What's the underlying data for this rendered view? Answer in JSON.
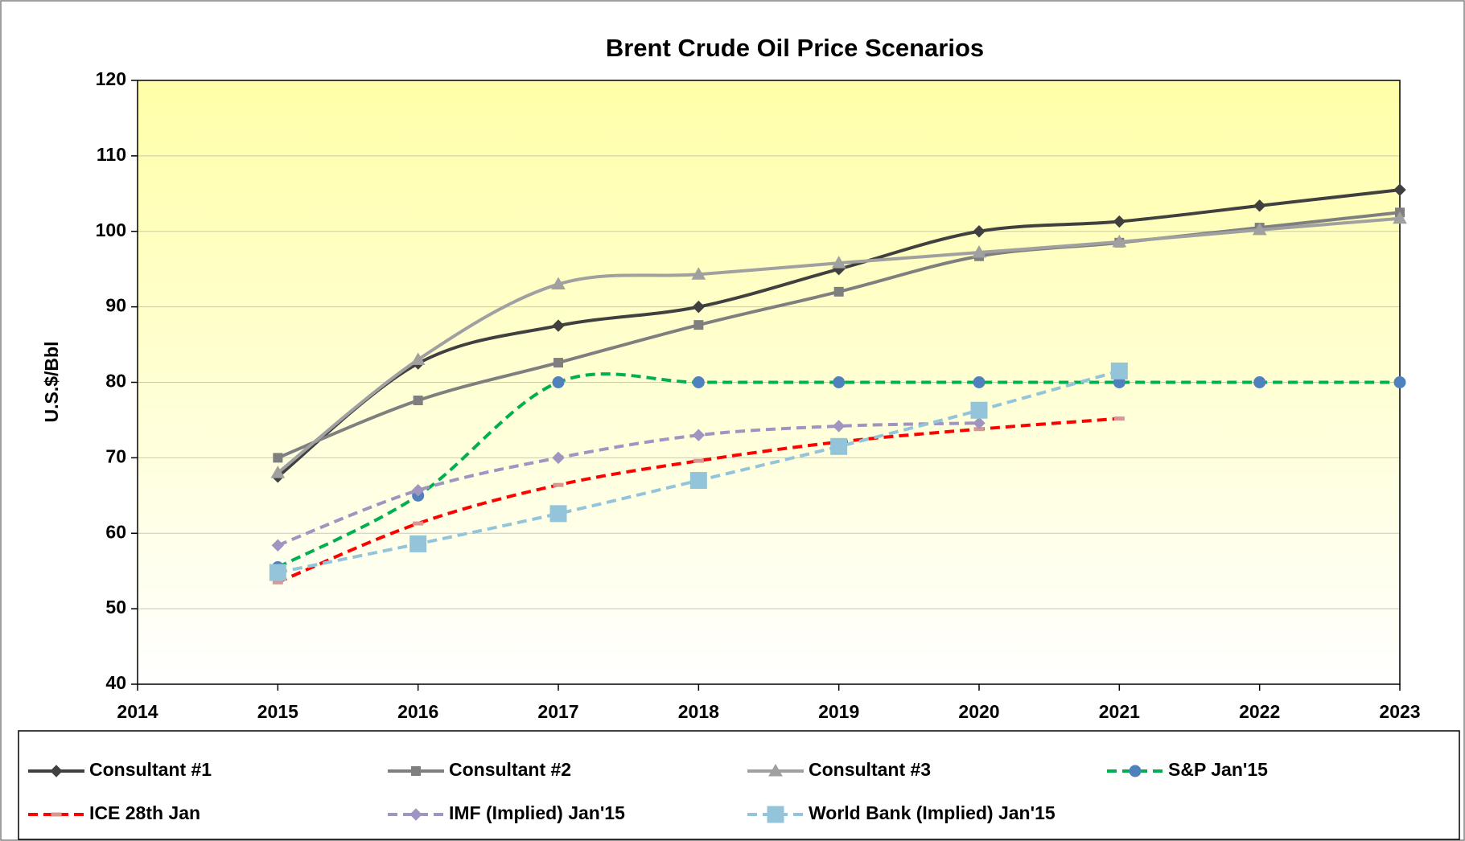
{
  "chart_data": {
    "type": "line",
    "title": "Brent Crude Oil Price Scenarios",
    "y_label": "U.S.$/Bbl",
    "x": [
      2015,
      2016,
      2017,
      2018,
      2019,
      2020,
      2021,
      2022,
      2023
    ],
    "xlim": [
      2014,
      2023
    ],
    "xticks": [
      2014,
      2015,
      2016,
      2017,
      2018,
      2019,
      2020,
      2021,
      2022,
      2023
    ],
    "ylim": [
      40,
      120
    ],
    "yticks": [
      40,
      50,
      60,
      70,
      80,
      90,
      100,
      110,
      120
    ],
    "grid": true,
    "smooth": true,
    "legend": "bottom",
    "series": [
      {
        "name": "Consultant #1",
        "color": "#404040",
        "marker": "diamond",
        "marker_color": "#404040",
        "dash": false,
        "values": [
          67.5,
          82.5,
          87.5,
          90,
          95,
          100,
          101.3,
          103.4,
          105.5
        ]
      },
      {
        "name": "Consultant #2",
        "color": "#7f7f7f",
        "marker": "square",
        "marker_color": "#7f7f7f",
        "dash": false,
        "values": [
          70,
          77.6,
          82.6,
          87.6,
          92,
          96.7,
          98.5,
          100.5,
          102.5
        ]
      },
      {
        "name": "Consultant #3",
        "color": "#a0a0a0",
        "marker": "triangle",
        "marker_color": "#a0a0a0",
        "dash": false,
        "values": [
          68,
          83,
          93,
          94.3,
          95.8,
          97.2,
          98.6,
          100.2,
          101.7
        ]
      },
      {
        "name": "S&P Jan'15",
        "color": "#00b050",
        "marker": "circle",
        "marker_color": "#4f81bd",
        "dash": true,
        "values": [
          55.5,
          65,
          80,
          80,
          80,
          80,
          80,
          80,
          80
        ]
      },
      {
        "name": "ICE 28th Jan",
        "color": "#ff0000",
        "marker": "dash",
        "marker_color": "#d99694",
        "dash": true,
        "values": [
          53.5,
          61.3,
          66.4,
          69.6,
          72.1,
          73.8,
          75.2,
          null,
          null
        ]
      },
      {
        "name": "IMF (Implied) Jan'15",
        "color": "#a094c0",
        "marker": "diamond",
        "marker_color": "#a094c0",
        "dash": true,
        "values": [
          58.4,
          65.7,
          70,
          73,
          74.2,
          74.6,
          null,
          null,
          null
        ]
      },
      {
        "name": "World Bank (Implied) Jan'15",
        "color": "#93c4d9",
        "marker": "big-square",
        "marker_color": "#93c4d9",
        "dash": true,
        "values": [
          54.8,
          58.6,
          62.6,
          67,
          71.5,
          76.3,
          81.5,
          null,
          null
        ]
      }
    ]
  }
}
